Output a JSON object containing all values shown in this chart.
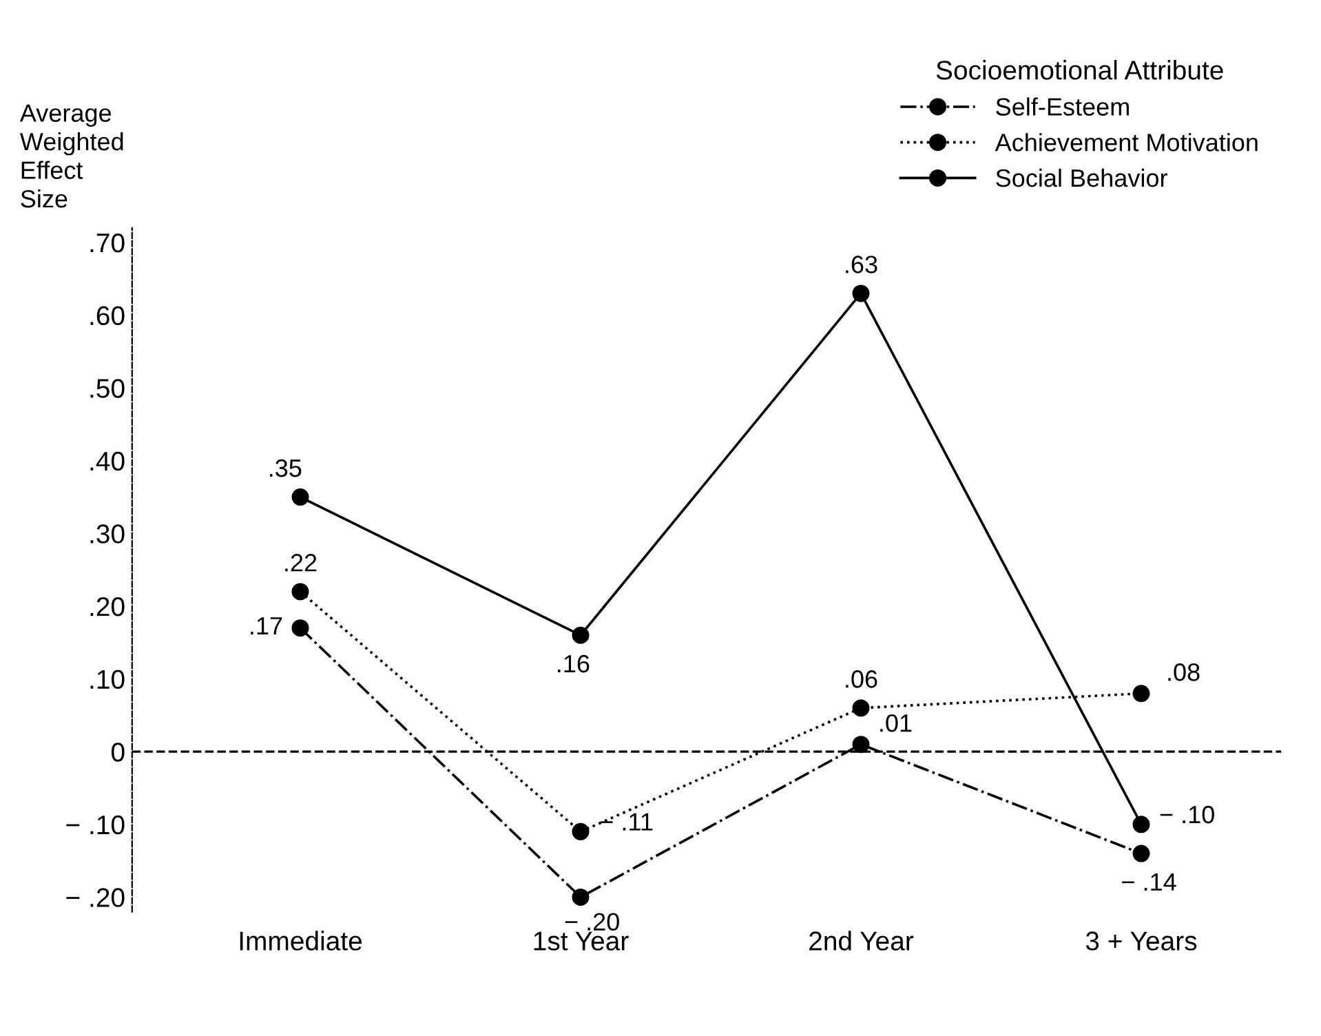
{
  "chart_data": {
    "type": "line",
    "ylabel": "Average\nWeighted\nEffect\nSize",
    "legend_title": "Socioemotional Attribute",
    "categories": [
      "Immediate",
      "1st Year",
      "2nd Year",
      "3 + Years"
    ],
    "series": [
      {
        "name": "Self-Esteem",
        "color": "#000000",
        "line_style": "dashdot",
        "values": [
          0.17,
          -0.2,
          0.01,
          -0.14
        ],
        "value_labels": [
          ".17",
          "− .20",
          ".01",
          "− .14"
        ]
      },
      {
        "name": "Achievement Motivation",
        "color": "#000000",
        "line_style": "dotted",
        "values": [
          0.22,
          -0.11,
          0.06,
          0.08
        ],
        "value_labels": [
          ".22",
          "− .11",
          ".06",
          ".08"
        ]
      },
      {
        "name": "Social Behavior",
        "color": "#000000",
        "line_style": "solid",
        "values": [
          0.35,
          0.16,
          0.63,
          -0.1
        ],
        "value_labels": [
          ".35",
          ".16",
          ".63",
          "− .10"
        ]
      }
    ],
    "marker": "circle",
    "ylim": [
      -0.22,
      0.72
    ],
    "yticks": [
      {
        "value": 0.7,
        "label": ".70"
      },
      {
        "value": 0.6,
        "label": ".60"
      },
      {
        "value": 0.5,
        "label": ".50"
      },
      {
        "value": 0.4,
        "label": ".40"
      },
      {
        "value": 0.3,
        "label": ".30"
      },
      {
        "value": 0.2,
        "label": ".20"
      },
      {
        "value": 0.1,
        "label": ".10"
      },
      0,
      {
        "value": -0.1,
        "label": "− .10"
      },
      {
        "value": -0.2,
        "label": "− .20"
      }
    ],
    "ref_lines": [
      {
        "axis": "y",
        "value": 0,
        "label": null,
        "color": "#000000",
        "line_style": "dashed"
      }
    ],
    "grid": false,
    "legend": "top right"
  }
}
